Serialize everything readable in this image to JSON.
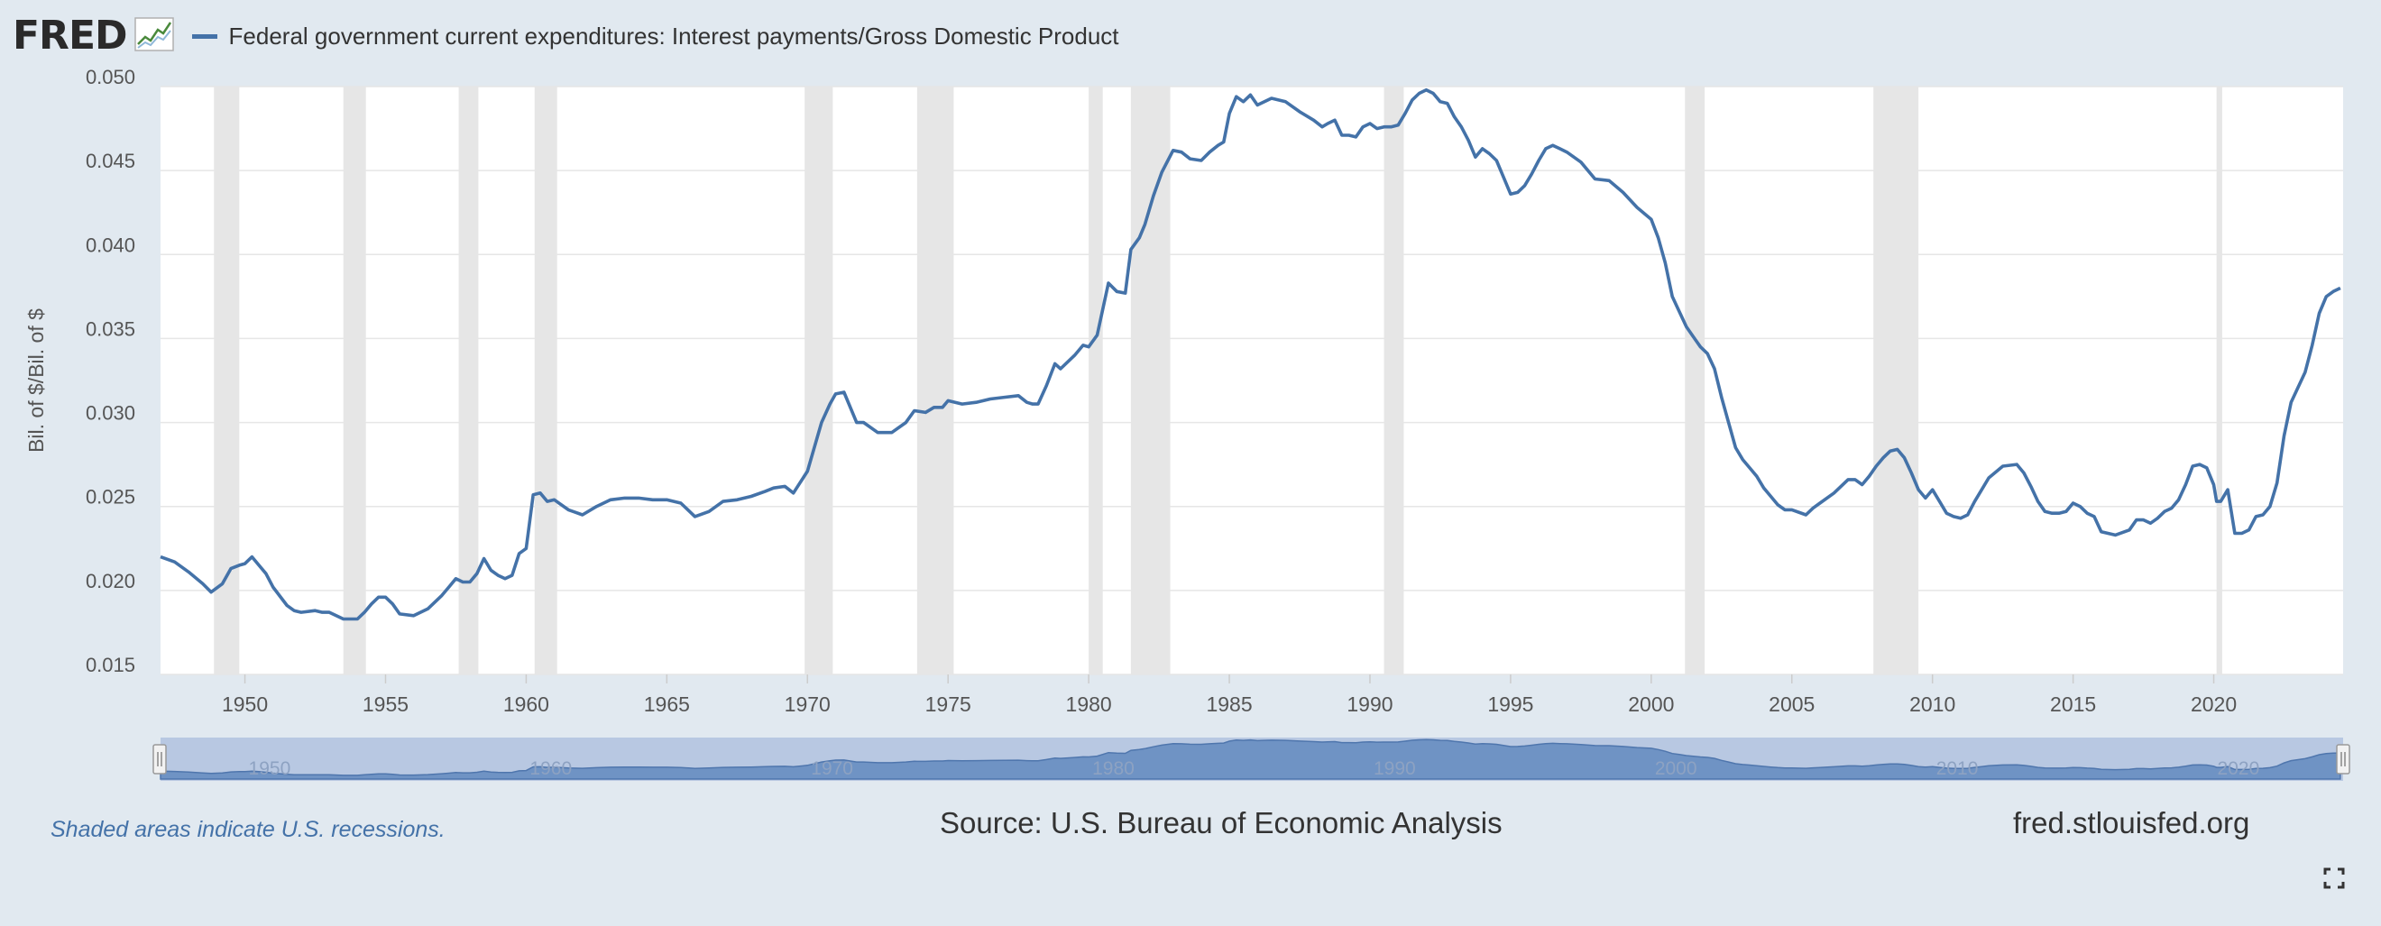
{
  "header": {
    "logo_text": "FRED",
    "logo_icon": "line-chart-icon",
    "series_label": "Federal government current expenditures: Interest payments/Gross Domestic Product"
  },
  "colors": {
    "background": "#e1e9f0",
    "plot_background": "#ffffff",
    "line": "#4472a8",
    "recession": "#e6e6e6",
    "grid": "#e6e6e6",
    "navigator_fill": "#6f93c4",
    "navigator_mask": "#b8c8e2"
  },
  "footer": {
    "recession_note": "Shaded areas indicate U.S. recessions.",
    "source": "Source: U.S. Bureau of Economic Analysis",
    "site": "fred.stlouisfed.org",
    "fullscreen_icon": "fullscreen-icon"
  },
  "chart_data": {
    "type": "line",
    "title": "",
    "xlabel": "",
    "ylabel": "Bil. of $/Bil. of $",
    "xlim": [
      1947.0,
      2024.6
    ],
    "ylim": [
      0.015,
      0.05
    ],
    "yticks": [
      "0.015",
      "0.020",
      "0.025",
      "0.030",
      "0.035",
      "0.040",
      "0.045",
      "0.050"
    ],
    "xticks": [
      "1950",
      "1955",
      "1960",
      "1965",
      "1970",
      "1975",
      "1980",
      "1985",
      "1990",
      "1995",
      "2000",
      "2005",
      "2010",
      "2015",
      "2020"
    ],
    "navigator_ticks": [
      "1950",
      "1960",
      "1970",
      "1980",
      "1990",
      "2000",
      "2010",
      "2020"
    ],
    "grid": true,
    "recessions": [
      [
        1948.9,
        1949.8
      ],
      [
        1953.5,
        1954.3
      ],
      [
        1957.6,
        1958.3
      ],
      [
        1960.3,
        1961.1
      ],
      [
        1969.9,
        1970.9
      ],
      [
        1973.9,
        1975.2
      ],
      [
        1980.0,
        1980.5
      ],
      [
        1981.5,
        1982.9
      ],
      [
        1990.5,
        1991.2
      ],
      [
        2001.2,
        2001.9
      ],
      [
        2007.9,
        2009.5
      ],
      [
        2020.1,
        2020.3
      ]
    ],
    "series": [
      {
        "name": "Federal government current expenditures: Interest payments/Gross Domestic Product",
        "x": [
          1947.0,
          1947.5,
          1948.0,
          1948.5,
          1948.8,
          1949.2,
          1949.5,
          1949.8,
          1950.0,
          1950.25,
          1950.5,
          1950.75,
          1951.0,
          1951.5,
          1951.75,
          1952.0,
          1952.5,
          1952.75,
          1953.0,
          1953.5,
          1954.0,
          1954.25,
          1954.5,
          1954.75,
          1955.0,
          1955.25,
          1955.5,
          1956.0,
          1956.5,
          1957.0,
          1957.25,
          1957.5,
          1957.75,
          1958.0,
          1958.25,
          1958.5,
          1958.75,
          1959.0,
          1959.25,
          1959.5,
          1959.75,
          1960.0,
          1960.25,
          1960.5,
          1960.75,
          1961.0,
          1961.5,
          1962.0,
          1962.5,
          1963.0,
          1963.5,
          1964.0,
          1964.5,
          1965.0,
          1965.5,
          1966.0,
          1966.5,
          1967.0,
          1967.5,
          1968.0,
          1968.5,
          1968.8,
          1969.2,
          1969.5,
          1970.0,
          1970.5,
          1970.8,
          1971.0,
          1971.3,
          1971.75,
          1972.0,
          1972.5,
          1973.0,
          1973.5,
          1973.8,
          1974.2,
          1974.5,
          1974.8,
          1975.0,
          1975.5,
          1976.0,
          1976.5,
          1977.0,
          1977.5,
          1977.8,
          1978.0,
          1978.2,
          1978.5,
          1978.8,
          1979.0,
          1979.5,
          1979.8,
          1980.0,
          1980.3,
          1980.7,
          1981.0,
          1981.3,
          1981.5,
          1981.8,
          1982.0,
          1982.3,
          1982.6,
          1983.0,
          1983.3,
          1983.6,
          1984.0,
          1984.3,
          1984.6,
          1984.8,
          1985.0,
          1985.25,
          1985.5,
          1985.75,
          1986.0,
          1986.5,
          1987.0,
          1987.5,
          1988.0,
          1988.3,
          1988.5,
          1988.75,
          1989.0,
          1989.25,
          1989.5,
          1989.75,
          1990.0,
          1990.25,
          1990.5,
          1990.75,
          1991.0,
          1991.25,
          1991.5,
          1991.75,
          1992.0,
          1992.25,
          1992.5,
          1992.75,
          1993.0,
          1993.25,
          1993.5,
          1993.75,
          1994.0,
          1994.25,
          1994.5,
          1994.75,
          1995.0,
          1995.25,
          1995.5,
          1995.75,
          1996.0,
          1996.25,
          1996.5,
          1996.75,
          1997.0,
          1997.5,
          1998.0,
          1998.5,
          1999.0,
          1999.5,
          2000.0,
          2000.25,
          2000.5,
          2000.75,
          2001.0,
          2001.25,
          2001.5,
          2001.75,
          2002.0,
          2002.25,
          2002.5,
          2002.75,
          2003.0,
          2003.25,
          2003.5,
          2003.75,
          2004.0,
          2004.25,
          2004.5,
          2004.75,
          2005.0,
          2005.5,
          2005.75,
          2006.0,
          2006.5,
          2007.0,
          2007.25,
          2007.5,
          2007.75,
          2008.0,
          2008.25,
          2008.5,
          2008.75,
          2009.0,
          2009.25,
          2009.5,
          2009.75,
          2010.0,
          2010.25,
          2010.5,
          2010.75,
          2011.0,
          2011.25,
          2011.5,
          2011.75,
          2012.0,
          2012.5,
          2013.0,
          2013.25,
          2013.5,
          2013.75,
          2014.0,
          2014.25,
          2014.5,
          2014.75,
          2015.0,
          2015.25,
          2015.5,
          2015.75,
          2016.0,
          2016.5,
          2017.0,
          2017.25,
          2017.5,
          2017.75,
          2018.0,
          2018.25,
          2018.5,
          2018.75,
          2019.0,
          2019.25,
          2019.5,
          2019.75,
          2020.0,
          2020.1,
          2020.25,
          2020.5,
          2020.75,
          2021.0,
          2021.25,
          2021.5,
          2021.75,
          2022.0,
          2022.25,
          2022.5,
          2022.75,
          2023.0,
          2023.25,
          2023.5,
          2023.75,
          2024.0,
          2024.25,
          2024.5
        ],
        "y": [
          0.022,
          0.0217,
          0.0211,
          0.0204,
          0.0199,
          0.0204,
          0.0213,
          0.0215,
          0.0216,
          0.022,
          0.0215,
          0.021,
          0.0202,
          0.0191,
          0.0188,
          0.0187,
          0.0188,
          0.0187,
          0.0187,
          0.0183,
          0.0183,
          0.0187,
          0.0192,
          0.0196,
          0.0196,
          0.0192,
          0.0186,
          0.0185,
          0.0189,
          0.0197,
          0.0202,
          0.0207,
          0.0205,
          0.0205,
          0.021,
          0.0219,
          0.0212,
          0.0209,
          0.0207,
          0.0209,
          0.0222,
          0.0225,
          0.0257,
          0.0258,
          0.0253,
          0.0254,
          0.0248,
          0.0245,
          0.025,
          0.0254,
          0.0255,
          0.0255,
          0.0254,
          0.0254,
          0.0252,
          0.0244,
          0.0247,
          0.0253,
          0.0254,
          0.0256,
          0.0259,
          0.0261,
          0.0262,
          0.0258,
          0.0271,
          0.03,
          0.0311,
          0.0317,
          0.0318,
          0.03,
          0.03,
          0.0294,
          0.0294,
          0.03,
          0.0307,
          0.0306,
          0.0309,
          0.0309,
          0.0313,
          0.0311,
          0.0312,
          0.0314,
          0.0315,
          0.0316,
          0.0312,
          0.0311,
          0.0311,
          0.0322,
          0.0335,
          0.0332,
          0.034,
          0.0346,
          0.0345,
          0.0352,
          0.0383,
          0.0378,
          0.0377,
          0.0403,
          0.041,
          0.0418,
          0.0435,
          0.0449,
          0.0462,
          0.0461,
          0.0457,
          0.0456,
          0.0461,
          0.0465,
          0.0467,
          0.0484,
          0.0494,
          0.0491,
          0.0495,
          0.0489,
          0.0493,
          0.0491,
          0.0485,
          0.048,
          0.0476,
          0.0478,
          0.048,
          0.0471,
          0.0471,
          0.047,
          0.0476,
          0.0478,
          0.0475,
          0.0476,
          0.0476,
          0.0477,
          0.0484,
          0.0492,
          0.0496,
          0.0498,
          0.0496,
          0.0491,
          0.049,
          0.0482,
          0.0476,
          0.0468,
          0.0458,
          0.0463,
          0.046,
          0.0456,
          0.0446,
          0.0436,
          0.0437,
          0.0441,
          0.0448,
          0.0456,
          0.0463,
          0.0465,
          0.0463,
          0.0461,
          0.0455,
          0.0445,
          0.0444,
          0.0437,
          0.0428,
          0.0421,
          0.041,
          0.0395,
          0.0375,
          0.0366,
          0.0357,
          0.0351,
          0.0345,
          0.0341,
          0.0332,
          0.0315,
          0.03,
          0.0285,
          0.0278,
          0.0273,
          0.0268,
          0.0261,
          0.0256,
          0.0251,
          0.0248,
          0.0248,
          0.0245,
          0.0249,
          0.0252,
          0.0258,
          0.0266,
          0.0266,
          0.0263,
          0.0268,
          0.0274,
          0.0279,
          0.0283,
          0.0284,
          0.0279,
          0.027,
          0.026,
          0.0255,
          0.026,
          0.0253,
          0.0246,
          0.0244,
          0.0243,
          0.0245,
          0.0253,
          0.026,
          0.0267,
          0.0274,
          0.0275,
          0.027,
          0.0262,
          0.0253,
          0.0247,
          0.0246,
          0.0246,
          0.0247,
          0.0252,
          0.025,
          0.0246,
          0.0244,
          0.0235,
          0.0233,
          0.0236,
          0.0242,
          0.0242,
          0.024,
          0.0243,
          0.0247,
          0.0249,
          0.0254,
          0.0263,
          0.0274,
          0.0275,
          0.0273,
          0.0263,
          0.0253,
          0.0253,
          0.026,
          0.0234,
          0.0234,
          0.0236,
          0.0244,
          0.0245,
          0.025,
          0.0264,
          0.0292,
          0.0312,
          0.0321,
          0.033,
          0.0346,
          0.0365,
          0.0375,
          0.0378,
          0.038
        ]
      }
    ]
  }
}
